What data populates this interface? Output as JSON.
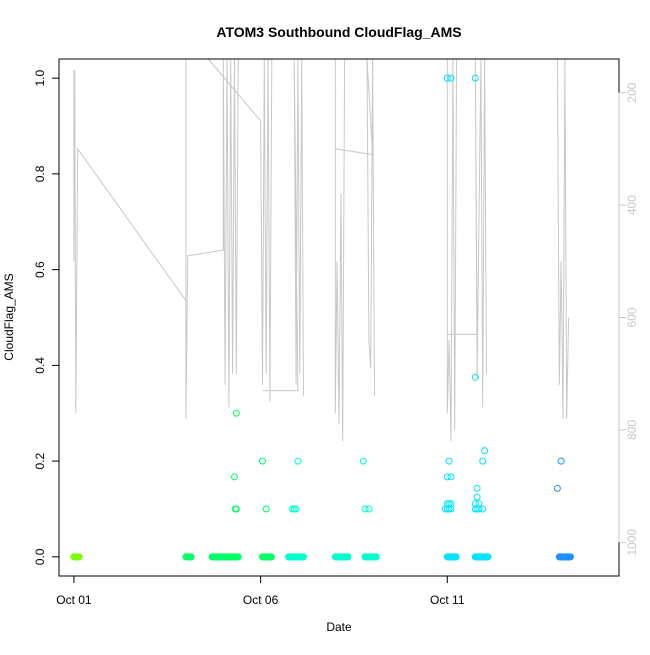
{
  "chart_data": {
    "type": "scatter",
    "title": "ATOM3 Southbound CloudFlag_AMS",
    "xlabel": "Date",
    "ylabel": "CloudFlag_AMS",
    "x_ticks": [
      {
        "label": "Oct 01",
        "day": 1
      },
      {
        "label": "Oct 06",
        "day": 6
      },
      {
        "label": "Oct 11",
        "day": 11
      }
    ],
    "y_ticks": [
      "0.0",
      "0.2",
      "0.4",
      "0.6",
      "0.8",
      "1.0"
    ],
    "y_right_ticks": [
      "200",
      "400",
      "600",
      "800",
      "1000"
    ],
    "xlim": [
      0.6,
      15.6
    ],
    "ylim": [
      -0.04,
      1.04
    ],
    "y_right_lim": [
      1060,
      140
    ],
    "y_right_reversed": true,
    "point_color_scale": [
      "#7cfc00",
      "#00ff66",
      "#00ffcc",
      "#00e5ff",
      "#1e90ff"
    ],
    "altitude_color": "#c8c8c8",
    "grid": false,
    "zero_clusters": [
      [
        1.0,
        1.15
      ],
      [
        4.0,
        4.15
      ],
      [
        4.7,
        5.4
      ],
      [
        6.05,
        6.3
      ],
      [
        6.75,
        7.15
      ],
      [
        8.0,
        8.35
      ],
      [
        8.8,
        9.1
      ],
      [
        11.0,
        11.25
      ],
      [
        11.75,
        12.1
      ],
      [
        14.0,
        14.3
      ]
    ],
    "points": [
      [
        5.35,
        0.3
      ],
      [
        5.3,
        0.167
      ],
      [
        5.32,
        0.1
      ],
      [
        5.35,
        0.1
      ],
      [
        6.05,
        0.2
      ],
      [
        6.15,
        0.1
      ],
      [
        6.85,
        0.1
      ],
      [
        6.9,
        0.1
      ],
      [
        6.95,
        0.1
      ],
      [
        7.0,
        0.2
      ],
      [
        8.75,
        0.2
      ],
      [
        8.8,
        0.1
      ],
      [
        8.9,
        0.1
      ],
      [
        11.0,
        1.0
      ],
      [
        11.1,
        1.0
      ],
      [
        11.05,
        0.2
      ],
      [
        11.0,
        0.167
      ],
      [
        11.1,
        0.167
      ],
      [
        11.0,
        0.111
      ],
      [
        11.05,
        0.111
      ],
      [
        11.1,
        0.111
      ],
      [
        10.95,
        0.1
      ],
      [
        11.0,
        0.1
      ],
      [
        11.05,
        0.1
      ],
      [
        11.1,
        0.1
      ],
      [
        11.75,
        1.0
      ],
      [
        11.75,
        0.375
      ],
      [
        11.8,
        0.143
      ],
      [
        11.8,
        0.125
      ],
      [
        11.75,
        0.111
      ],
      [
        11.85,
        0.111
      ],
      [
        11.75,
        0.1
      ],
      [
        11.8,
        0.1
      ],
      [
        11.85,
        0.1
      ],
      [
        11.95,
        0.1
      ],
      [
        11.95,
        0.2
      ],
      [
        12.0,
        0.222
      ],
      [
        13.95,
        0.143
      ],
      [
        14.05,
        0.2
      ]
    ],
    "altitude_segments": [
      [
        [
          1.0,
          160
        ],
        [
          1.0,
          500
        ],
        [
          1.02,
          160
        ],
        [
          1.05,
          770
        ],
        [
          1.1,
          300
        ],
        [
          4.0,
          570
        ]
      ],
      [
        [
          4.0,
          140
        ],
        [
          4.0,
          780
        ],
        [
          4.05,
          490
        ],
        [
          5.0,
          480
        ],
        [
          5.0,
          140
        ],
        [
          5.05,
          720
        ],
        [
          5.1,
          140
        ],
        [
          5.15,
          760
        ],
        [
          5.2,
          140
        ],
        [
          5.25,
          700
        ],
        [
          5.3,
          140
        ],
        [
          5.35,
          700
        ],
        [
          5.4,
          140
        ]
      ],
      [
        [
          4.6,
          140
        ],
        [
          6.0,
          250
        ],
        [
          6.05,
          720
        ],
        [
          6.1,
          140
        ],
        [
          6.15,
          700
        ],
        [
          6.2,
          140
        ],
        [
          6.25,
          750
        ],
        [
          6.3,
          140
        ]
      ],
      [
        [
          6.05,
          730
        ],
        [
          7.0,
          730
        ],
        [
          6.9,
          140
        ],
        [
          6.95,
          720
        ],
        [
          7.0,
          140
        ],
        [
          7.05,
          700
        ],
        [
          7.1,
          140
        ],
        [
          7.15,
          740
        ]
      ],
      [
        [
          8.0,
          140
        ],
        [
          8.0,
          770
        ],
        [
          8.05,
          500
        ],
        [
          8.1,
          790
        ],
        [
          8.15,
          380
        ],
        [
          8.2,
          820
        ],
        [
          8.25,
          140
        ]
      ],
      [
        [
          8.0,
          300
        ],
        [
          9.0,
          310
        ],
        [
          8.85,
          140
        ],
        [
          8.9,
          640
        ],
        [
          8.95,
          690
        ],
        [
          9.0,
          140
        ],
        [
          9.05,
          740
        ]
      ],
      [
        [
          11.0,
          140
        ],
        [
          11.0,
          770
        ],
        [
          11.05,
          640
        ],
        [
          11.1,
          820
        ],
        [
          11.15,
          140
        ],
        [
          11.2,
          800
        ],
        [
          11.25,
          140
        ]
      ],
      [
        [
          11.0,
          630
        ],
        [
          11.8,
          630
        ],
        [
          11.75,
          140
        ],
        [
          11.8,
          710
        ],
        [
          11.9,
          140
        ],
        [
          11.95,
          760
        ],
        [
          12.0,
          140
        ],
        [
          12.05,
          700
        ]
      ],
      [
        [
          13.95,
          140
        ],
        [
          14.0,
          720
        ],
        [
          14.05,
          500
        ],
        [
          14.1,
          780
        ],
        [
          14.15,
          140
        ],
        [
          14.2,
          780
        ],
        [
          14.25,
          600
        ]
      ]
    ]
  }
}
